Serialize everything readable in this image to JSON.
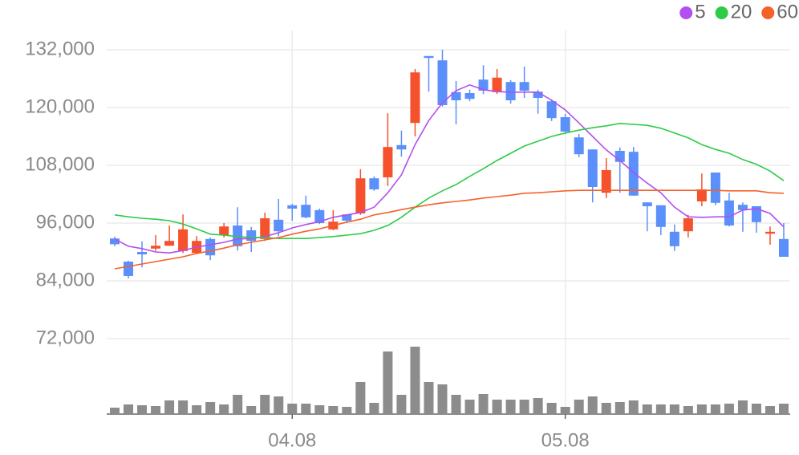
{
  "chart_data": {
    "type": "candlestick",
    "categories": [
      null,
      null,
      null,
      null,
      null,
      null,
      null,
      null,
      null,
      null,
      null,
      null,
      null,
      "04.08",
      null,
      null,
      null,
      null,
      null,
      null,
      null,
      null,
      null,
      null,
      null,
      null,
      null,
      null,
      null,
      null,
      null,
      null,
      null,
      "05.08",
      null,
      null,
      null,
      null,
      null,
      null,
      null,
      null,
      null,
      null,
      null,
      null,
      null,
      null,
      null,
      null
    ],
    "open": [
      92800,
      88000,
      90000,
      90700,
      91300,
      90200,
      89800,
      92700,
      93500,
      95500,
      94500,
      92700,
      96700,
      99700,
      99800,
      98700,
      94700,
      97800,
      98000,
      105300,
      105500,
      112200,
      116800,
      130700,
      129800,
      123200,
      123000,
      125800,
      123200,
      125300,
      125300,
      123300,
      121300,
      118000,
      113800,
      111300,
      102300,
      111000,
      110800,
      100300,
      99700,
      94200,
      94300,
      100500,
      106500,
      100700,
      99800,
      99500,
      93800,
      92700
    ],
    "high": [
      93200,
      88200,
      92200,
      93500,
      95500,
      97800,
      93300,
      93000,
      96000,
      99300,
      95200,
      98200,
      101000,
      100000,
      101700,
      99000,
      98700,
      97800,
      107200,
      105700,
      118800,
      115200,
      128000,
      130700,
      132000,
      125500,
      123700,
      128800,
      128000,
      125700,
      128500,
      123700,
      121700,
      118700,
      114500,
      111300,
      109500,
      111700,
      111800,
      100300,
      99700,
      95700,
      97700,
      106300,
      106500,
      102300,
      100300,
      99500,
      95300,
      96000
    ],
    "low": [
      91200,
      84500,
      86800,
      90200,
      91300,
      89800,
      89700,
      88300,
      93000,
      90300,
      90000,
      92300,
      93300,
      96500,
      97000,
      95800,
      94500,
      96000,
      97700,
      102700,
      103700,
      109800,
      114000,
      123300,
      120200,
      116500,
      121300,
      122800,
      122800,
      120800,
      122000,
      118700,
      117200,
      114500,
      109700,
      100300,
      101200,
      102300,
      101700,
      94300,
      93500,
      90200,
      93000,
      99500,
      99700,
      95300,
      94200,
      94000,
      91500,
      89000
    ],
    "close": [
      91600,
      85000,
      89500,
      91300,
      92300,
      94700,
      92300,
      89300,
      95300,
      91200,
      92300,
      97000,
      94300,
      99000,
      97200,
      96000,
      96300,
      96500,
      105300,
      103000,
      111800,
      111300,
      127300,
      130300,
      120500,
      121500,
      121800,
      123500,
      126200,
      121500,
      123500,
      122000,
      117800,
      115000,
      110300,
      103500,
      107000,
      108700,
      101700,
      99500,
      95200,
      91200,
      97000,
      103000,
      100200,
      95500,
      98700,
      96200,
      94200,
      89000
    ],
    "up_color": "#f4512c",
    "down_color": "#5b8ff9",
    "volume": [
      8,
      12,
      11,
      10,
      17,
      17,
      11,
      15,
      12,
      24,
      10,
      24,
      22,
      13,
      13,
      11,
      10,
      9,
      40,
      14,
      78,
      24,
      84,
      40,
      37,
      24,
      18,
      25,
      18,
      18,
      18,
      20,
      14,
      9,
      18,
      22,
      14,
      15,
      17,
      12,
      12,
      12,
      10,
      12,
      12,
      13,
      17,
      13,
      10,
      13
    ],
    "volume_color": "#8c8c8c",
    "vlim": [
      0,
      90
    ],
    "series": [
      {
        "name": "5",
        "color": "#b24ff0",
        "values": [
          92700,
          91200,
          90700,
          90000,
          89800,
          90300,
          91000,
          91500,
          92000,
          92700,
          92800,
          93200,
          94000,
          95000,
          95700,
          96300,
          97200,
          97700,
          98200,
          99300,
          102300,
          106000,
          112300,
          117300,
          121000,
          123500,
          124700,
          123700,
          123300,
          123200,
          123200,
          123200,
          121500,
          119500,
          116800,
          114000,
          111200,
          109000,
          106500,
          104300,
          102300,
          99300,
          97300,
          97200,
          97300,
          97300,
          98700,
          99000,
          98000,
          95200
        ]
      },
      {
        "name": "20",
        "color": "#2ecb47",
        "values": [
          97700,
          97300,
          97000,
          96800,
          96500,
          95800,
          94800,
          93700,
          93500,
          93200,
          93000,
          93000,
          92800,
          92800,
          92800,
          93000,
          93200,
          93500,
          93800,
          94500,
          95500,
          97200,
          99300,
          101200,
          102700,
          104000,
          105700,
          107300,
          109000,
          110500,
          112000,
          113000,
          114000,
          114700,
          115300,
          115800,
          116200,
          116700,
          116500,
          116300,
          115700,
          114700,
          113700,
          112300,
          111300,
          110500,
          109200,
          108200,
          106800,
          104800
        ]
      },
      {
        "name": "60",
        "color": "#f4622a",
        "values": [
          86500,
          87000,
          87500,
          88000,
          88500,
          89000,
          89700,
          90200,
          90800,
          91500,
          92000,
          92500,
          93000,
          93700,
          94300,
          94800,
          95500,
          96200,
          96800,
          97700,
          98200,
          98800,
          99300,
          99800,
          100200,
          100500,
          100800,
          101200,
          101500,
          101800,
          102200,
          102300,
          102500,
          102700,
          102800,
          102800,
          102800,
          102800,
          102800,
          102800,
          102800,
          102800,
          102800,
          102800,
          102800,
          102700,
          102700,
          102700,
          102300,
          102200
        ]
      }
    ],
    "ylim": [
      68000,
      136000
    ],
    "yticks": [
      {
        "value": 132000,
        "label": "132,000"
      },
      {
        "value": 120000,
        "label": "120,000"
      },
      {
        "value": 108000,
        "label": "108,000"
      },
      {
        "value": 96000,
        "label": "96,000"
      },
      {
        "value": 84000,
        "label": "84,000"
      },
      {
        "value": 72000,
        "label": "72,000"
      }
    ],
    "grid": true,
    "legend": "top-right"
  }
}
